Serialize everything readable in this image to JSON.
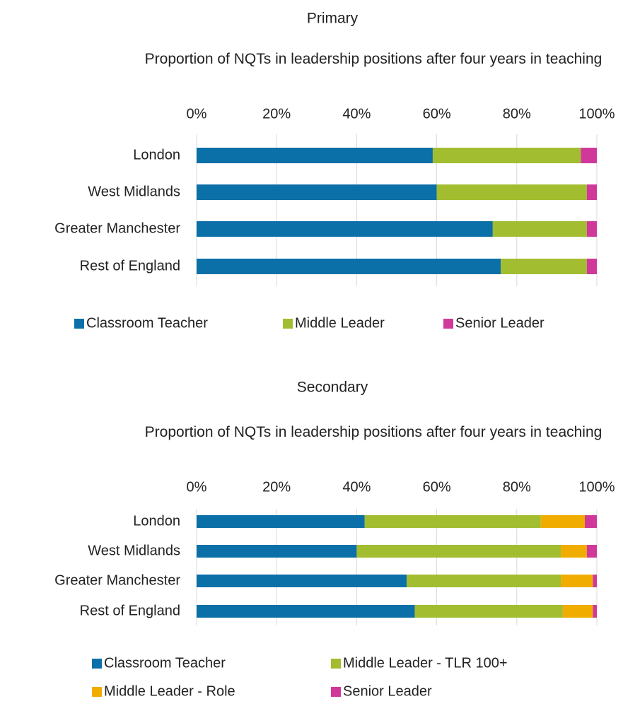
{
  "chart_data": [
    {
      "type": "stacked-bar-horizontal",
      "heading": "Primary",
      "title": "Proportion of NQTs in leadership positions after four years in teaching",
      "categories": [
        "London",
        "West Midlands",
        "Greater Manchester",
        "Rest of England"
      ],
      "series": [
        {
          "name": "Classroom Teacher",
          "color": "#0b6fa8",
          "values": [
            59,
            60,
            74,
            76
          ]
        },
        {
          "name": "Middle Leader",
          "color": "#a2bd30",
          "values": [
            37,
            37.5,
            23.5,
            21.5
          ]
        },
        {
          "name": "Senior Leader",
          "color": "#d0399a",
          "values": [
            4,
            2.5,
            2.5,
            2.5
          ]
        }
      ],
      "xlim": [
        0,
        100
      ],
      "xticks": [
        {
          "value": 0,
          "label": "0%"
        },
        {
          "value": 20,
          "label": "20%"
        },
        {
          "value": 40,
          "label": "40%"
        },
        {
          "value": 60,
          "label": "60%"
        },
        {
          "value": 80,
          "label": "80%"
        },
        {
          "value": 100,
          "label": "100%"
        }
      ],
      "grid": true,
      "legend": "bottom"
    },
    {
      "type": "stacked-bar-horizontal",
      "heading": "Secondary",
      "title": "Proportion of NQTs in leadership positions after four years in teaching",
      "categories": [
        "London",
        "West Midlands",
        "Greater Manchester",
        "Rest of England"
      ],
      "series": [
        {
          "name": "Classroom Teacher",
          "color": "#0b6fa8",
          "values": [
            42,
            40,
            52.5,
            54.5
          ]
        },
        {
          "name": "Middle Leader - TLR 100+",
          "color": "#a2bd30",
          "values": [
            44,
            51,
            38.5,
            37
          ]
        },
        {
          "name": "Middle Leader - Role",
          "color": "#f0ad00",
          "values": [
            11,
            6.5,
            8,
            7.5
          ]
        },
        {
          "name": "Senior Leader",
          "color": "#d0399a",
          "values": [
            3,
            2.5,
            1,
            1
          ]
        }
      ],
      "xlim": [
        0,
        100
      ],
      "xticks": [
        {
          "value": 0,
          "label": "0%"
        },
        {
          "value": 20,
          "label": "20%"
        },
        {
          "value": 40,
          "label": "40%"
        },
        {
          "value": 60,
          "label": "60%"
        },
        {
          "value": 80,
          "label": "80%"
        },
        {
          "value": 100,
          "label": "100%"
        }
      ],
      "grid": true,
      "legend": "bottom"
    }
  ]
}
